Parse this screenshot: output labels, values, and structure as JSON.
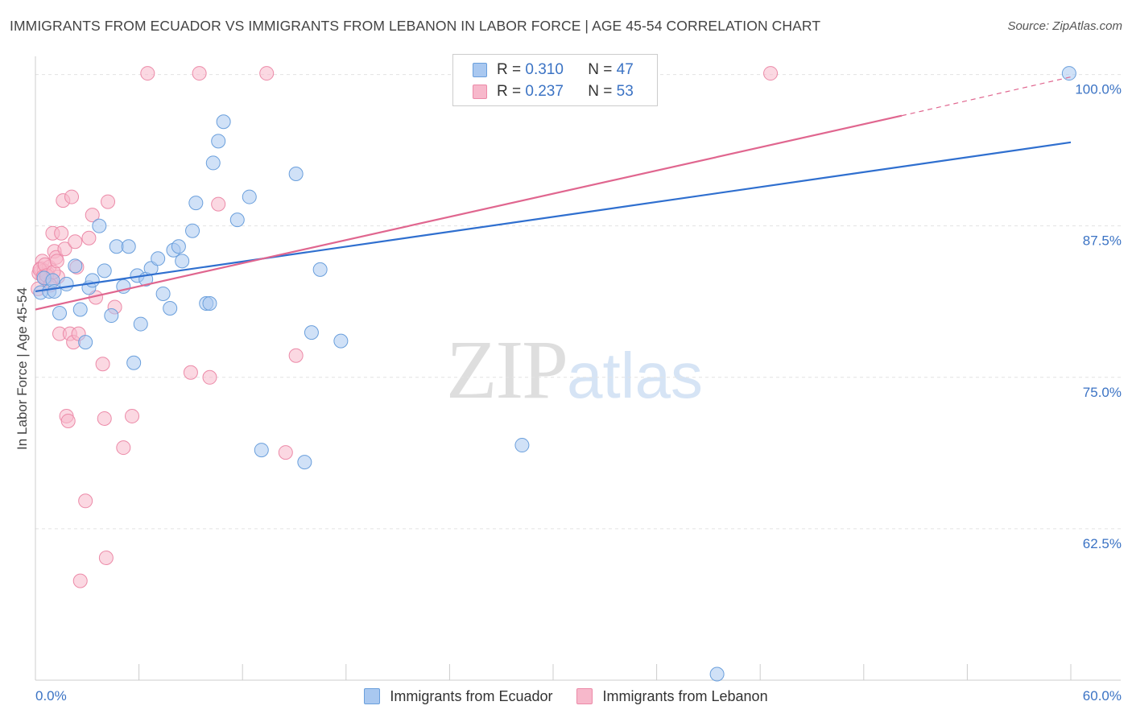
{
  "header": {
    "title": "IMMIGRANTS FROM ECUADOR VS IMMIGRANTS FROM LEBANON IN LABOR FORCE | AGE 45-54 CORRELATION CHART",
    "source": "Source: ZipAtlas.com"
  },
  "watermark": {
    "zip": "ZIP",
    "atlas": "atlas"
  },
  "legend": {
    "rows": [
      {
        "r_label": "R =",
        "r_value": "0.310",
        "n_label": "N =",
        "n_value": "47"
      },
      {
        "r_label": "R =",
        "r_value": "0.237",
        "n_label": "N =",
        "n_value": "53"
      }
    ]
  },
  "bottom_legend": {
    "ecuador": "Immigrants from Ecuador",
    "lebanon": "Immigrants from Lebanon"
  },
  "colors": {
    "ecuador_fill": "#a9c8f0",
    "ecuador_stroke": "#6a9fdc",
    "ecuador_line": "#2f6fcf",
    "lebanon_fill": "#f7b8cb",
    "lebanon_stroke": "#ec8aa8",
    "lebanon_line": "#e0668f",
    "tick_text": "#3b73c4",
    "grid": "#e3e3e3"
  },
  "chart_data": {
    "type": "scatter",
    "title": "IMMIGRANTS FROM ECUADOR VS IMMIGRANTS FROM LEBANON IN LABOR FORCE | AGE 45-54 CORRELATION CHART",
    "xlabel": "",
    "ylabel": "In Labor Force | Age 45-54",
    "xlim": [
      0,
      60
    ],
    "ylim": [
      50,
      101.5
    ],
    "x_tick_labels": [
      "0.0%",
      "60.0%"
    ],
    "y_ticks": [
      62.5,
      75.0,
      87.5,
      100.0
    ],
    "y_tick_labels": [
      "62.5%",
      "75.0%",
      "87.5%",
      "100.0%"
    ],
    "grid": true,
    "series": [
      {
        "name": "Immigrants from Ecuador",
        "R": 0.31,
        "N": 47,
        "trend": {
          "x": [
            0,
            60
          ],
          "y": [
            82.1,
            94.4
          ]
        },
        "points": [
          [
            0.3,
            82.0
          ],
          [
            0.5,
            83.2
          ],
          [
            0.8,
            82.1
          ],
          [
            1.0,
            83.0
          ],
          [
            1.1,
            82.1
          ],
          [
            1.4,
            80.3
          ],
          [
            1.8,
            82.7
          ],
          [
            2.3,
            84.2
          ],
          [
            2.6,
            80.6
          ],
          [
            2.9,
            77.9
          ],
          [
            3.1,
            82.4
          ],
          [
            3.3,
            83.0
          ],
          [
            3.7,
            87.5
          ],
          [
            4.0,
            83.8
          ],
          [
            4.4,
            80.1
          ],
          [
            4.7,
            85.8
          ],
          [
            5.1,
            82.5
          ],
          [
            5.4,
            85.8
          ],
          [
            5.7,
            76.2
          ],
          [
            5.9,
            83.4
          ],
          [
            6.1,
            79.4
          ],
          [
            6.4,
            83.1
          ],
          [
            6.7,
            84.0
          ],
          [
            7.1,
            84.8
          ],
          [
            7.4,
            81.9
          ],
          [
            7.8,
            80.7
          ],
          [
            8.0,
            85.5
          ],
          [
            8.3,
            85.8
          ],
          [
            8.5,
            84.6
          ],
          [
            9.1,
            87.1
          ],
          [
            9.3,
            89.4
          ],
          [
            9.9,
            81.1
          ],
          [
            10.1,
            81.1
          ],
          [
            10.3,
            92.7
          ],
          [
            10.6,
            94.5
          ],
          [
            10.9,
            96.1
          ],
          [
            11.7,
            88.0
          ],
          [
            12.4,
            89.9
          ],
          [
            13.1,
            69.0
          ],
          [
            15.1,
            91.8
          ],
          [
            15.6,
            68.0
          ],
          [
            16.0,
            78.7
          ],
          [
            16.5,
            83.9
          ],
          [
            17.7,
            78.0
          ],
          [
            28.2,
            69.4
          ],
          [
            39.5,
            50.5
          ],
          [
            59.9,
            100.1
          ]
        ]
      },
      {
        "name": "Immigrants from Lebanon",
        "R": 0.237,
        "N": 53,
        "trend": {
          "x": [
            0,
            50.2
          ],
          "y": [
            80.6,
            96.6
          ]
        },
        "trend_dashed": {
          "x": [
            50.2,
            60
          ],
          "y": [
            96.6,
            99.8
          ]
        },
        "points": [
          [
            0.2,
            83.6
          ],
          [
            0.3,
            84.0
          ],
          [
            0.4,
            84.6
          ],
          [
            0.5,
            83.8
          ],
          [
            0.6,
            83.2
          ],
          [
            0.7,
            83.6
          ],
          [
            0.8,
            84.1
          ],
          [
            0.9,
            82.9
          ],
          [
            1.0,
            86.9
          ],
          [
            1.1,
            85.4
          ],
          [
            1.2,
            84.9
          ],
          [
            1.3,
            83.3
          ],
          [
            1.4,
            78.6
          ],
          [
            1.5,
            86.9
          ],
          [
            1.6,
            89.6
          ],
          [
            1.7,
            85.6
          ],
          [
            1.8,
            71.8
          ],
          [
            1.9,
            71.4
          ],
          [
            2.0,
            78.6
          ],
          [
            2.1,
            89.9
          ],
          [
            2.2,
            77.9
          ],
          [
            2.3,
            86.2
          ],
          [
            2.4,
            84.1
          ],
          [
            2.5,
            78.6
          ],
          [
            2.6,
            58.2
          ],
          [
            2.9,
            64.8
          ],
          [
            3.1,
            86.5
          ],
          [
            3.3,
            88.4
          ],
          [
            3.5,
            81.6
          ],
          [
            3.9,
            76.1
          ],
          [
            4.0,
            71.6
          ],
          [
            4.1,
            60.1
          ],
          [
            4.2,
            89.5
          ],
          [
            4.6,
            80.8
          ],
          [
            5.1,
            69.2
          ],
          [
            5.6,
            71.8
          ],
          [
            6.5,
            100.1
          ],
          [
            9.0,
            75.4
          ],
          [
            9.5,
            100.1
          ],
          [
            10.1,
            75.0
          ],
          [
            10.6,
            89.3
          ],
          [
            13.4,
            100.1
          ],
          [
            14.5,
            68.8
          ],
          [
            15.1,
            76.8
          ],
          [
            42.6,
            100.1
          ],
          [
            0.15,
            82.3
          ],
          [
            0.25,
            83.9
          ],
          [
            0.45,
            83.3
          ],
          [
            0.55,
            84.3
          ],
          [
            0.65,
            83.4
          ],
          [
            0.85,
            82.6
          ],
          [
            1.05,
            83.7
          ],
          [
            1.25,
            84.6
          ]
        ]
      }
    ]
  }
}
